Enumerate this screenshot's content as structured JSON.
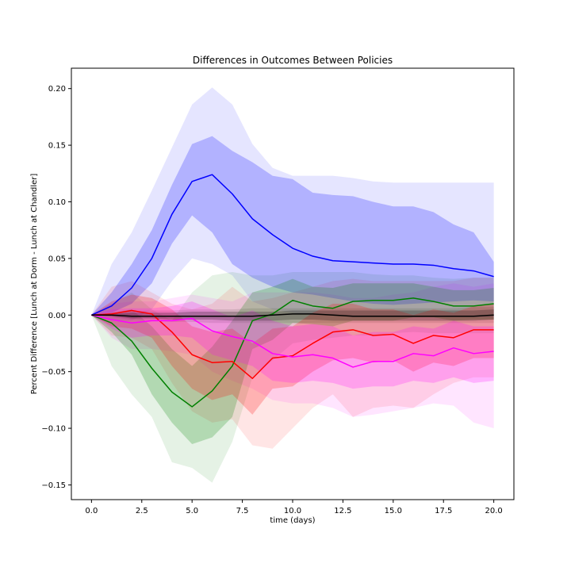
{
  "chart_data": {
    "type": "line",
    "title": "Differences in Outcomes Between Policies",
    "xlabel": "time (days)",
    "ylabel": "Percent Difference [Lunch at Dorm - Lunch at Chandler]",
    "xlim": [
      -1.0,
      21.0
    ],
    "ylim": [
      -0.163,
      0.218
    ],
    "xticks": [
      0.0,
      2.5,
      5.0,
      7.5,
      10.0,
      12.5,
      15.0,
      17.5,
      20.0
    ],
    "xtick_labels": [
      "0.0",
      "2.5",
      "5.0",
      "7.5",
      "10.0",
      "12.5",
      "15.0",
      "17.5",
      "20.0"
    ],
    "yticks": [
      -0.15,
      -0.1,
      -0.05,
      0.0,
      0.05,
      0.1,
      0.15,
      0.2
    ],
    "ytick_labels": [
      "−0.15",
      "−0.10",
      "−0.05",
      "0.00",
      "0.05",
      "0.10",
      "0.15",
      "0.20"
    ],
    "grid": false,
    "x": [
      0,
      1,
      2,
      3,
      4,
      5,
      6,
      7,
      8,
      9,
      10,
      11,
      12,
      13,
      14,
      15,
      16,
      17,
      18,
      19,
      20
    ],
    "series": [
      {
        "color": "#0000ff",
        "values": [
          0,
          0.008,
          0.024,
          0.05,
          0.089,
          0.118,
          0.124,
          0.107,
          0.085,
          0.071,
          0.059,
          0.052,
          0.048,
          0.047,
          0.046,
          0.045,
          0.045,
          0.044,
          0.041,
          0.039,
          0.034
        ],
        "band_inner": {
          "upper": [
            0,
            0.02,
            0.045,
            0.075,
            0.115,
            0.151,
            0.158,
            0.145,
            0.135,
            0.123,
            0.12,
            0.108,
            0.106,
            0.105,
            0.1,
            0.096,
            0.096,
            0.091,
            0.08,
            0.073,
            0.047
          ],
          "lower": [
            0,
            0.002,
            0.01,
            0.028,
            0.063,
            0.088,
            0.073,
            0.045,
            0.033,
            0.025,
            0.02,
            0.018,
            0.015,
            0.012,
            0.01,
            0.009,
            0.01,
            0.011,
            0.012,
            0.013,
            0.012
          ]
        },
        "band_outer": {
          "upper": [
            0,
            0.045,
            0.073,
            0.11,
            0.148,
            0.186,
            0.201,
            0.186,
            0.151,
            0.13,
            0.123,
            0.123,
            0.123,
            0.121,
            0.118,
            0.117,
            0.117,
            0.117,
            0.117,
            0.117,
            0.117
          ],
          "lower": [
            0,
            -0.005,
            -0.005,
            0.005,
            0.03,
            0.05,
            0.045,
            0.035,
            0.012,
            0.005,
            0.002,
            0.0,
            0.0,
            -0.002,
            -0.002,
            -0.002,
            -0.002,
            -0.002,
            -0.002,
            -0.002,
            -0.002
          ]
        }
      },
      {
        "color": "#008000",
        "values": [
          0,
          -0.007,
          -0.023,
          -0.047,
          -0.068,
          -0.081,
          -0.067,
          -0.045,
          -0.005,
          0.001,
          0.013,
          0.008,
          0.006,
          0.012,
          0.013,
          0.013,
          0.015,
          0.012,
          0.008,
          0.008,
          0.01
        ],
        "band_inner": {
          "upper": [
            0,
            0.002,
            0.005,
            -0.01,
            -0.03,
            -0.045,
            -0.028,
            -0.005,
            0.02,
            0.025,
            0.032,
            0.025,
            0.024,
            0.028,
            0.028,
            0.028,
            0.028,
            0.025,
            0.022,
            0.022,
            0.024
          ],
          "lower": [
            0,
            -0.015,
            -0.035,
            -0.07,
            -0.095,
            -0.114,
            -0.108,
            -0.09,
            -0.03,
            -0.022,
            -0.007,
            -0.008,
            -0.01,
            -0.005,
            -0.005,
            -0.005,
            -0.002,
            -0.002,
            -0.005,
            -0.004,
            -0.004
          ]
        },
        "band_outer": {
          "upper": [
            0,
            0.01,
            0.02,
            0.005,
            -0.005,
            0.02,
            0.035,
            0.038,
            0.035,
            0.035,
            0.038,
            0.038,
            0.038,
            0.038,
            0.036,
            0.035,
            0.035,
            0.033,
            0.032,
            0.033,
            0.033
          ],
          "lower": [
            0,
            -0.045,
            -0.07,
            -0.09,
            -0.13,
            -0.135,
            -0.148,
            -0.112,
            -0.055,
            -0.04,
            -0.025,
            -0.022,
            -0.02,
            -0.018,
            -0.018,
            -0.016,
            -0.015,
            -0.016,
            -0.016,
            -0.016,
            -0.016
          ]
        }
      },
      {
        "color": "#ff0000",
        "values": [
          0,
          0.001,
          0.004,
          0.001,
          -0.015,
          -0.035,
          -0.042,
          -0.041,
          -0.056,
          -0.038,
          -0.036,
          -0.025,
          -0.015,
          -0.013,
          -0.018,
          -0.017,
          -0.025,
          -0.018,
          -0.02,
          -0.013,
          -0.013
        ],
        "band_inner": {
          "upper": [
            0,
            0.012,
            0.018,
            0.015,
            0.005,
            -0.01,
            -0.015,
            -0.012,
            -0.025,
            -0.012,
            -0.01,
            0.002,
            0.01,
            0.01,
            0.005,
            0.005,
            0.0,
            0.005,
            0.002,
            0.008,
            0.01
          ],
          "lower": [
            0,
            -0.01,
            -0.012,
            -0.02,
            -0.045,
            -0.065,
            -0.075,
            -0.07,
            -0.088,
            -0.065,
            -0.063,
            -0.05,
            -0.04,
            -0.038,
            -0.042,
            -0.04,
            -0.05,
            -0.042,
            -0.045,
            -0.038,
            -0.038
          ]
        },
        "band_outer": {
          "upper": [
            0,
            0.025,
            0.03,
            0.02,
            0.01,
            0.005,
            0.01,
            0.025,
            0.012,
            0.015,
            0.02,
            0.025,
            0.03,
            0.032,
            0.03,
            0.03,
            0.03,
            0.03,
            0.03,
            0.033,
            0.033
          ],
          "lower": [
            0,
            -0.018,
            -0.02,
            -0.03,
            -0.06,
            -0.085,
            -0.095,
            -0.092,
            -0.115,
            -0.118,
            -0.1,
            -0.082,
            -0.07,
            -0.09,
            -0.082,
            -0.08,
            -0.082,
            -0.07,
            -0.06,
            -0.055,
            -0.055
          ]
        }
      },
      {
        "color": "#ff00ff",
        "values": [
          0,
          -0.004,
          -0.007,
          -0.005,
          -0.005,
          -0.003,
          -0.014,
          -0.019,
          -0.023,
          -0.034,
          -0.037,
          -0.035,
          -0.038,
          -0.046,
          -0.041,
          -0.041,
          -0.034,
          -0.036,
          -0.029,
          -0.034,
          -0.032
        ],
        "band_inner": {
          "upper": [
            0,
            0.005,
            0.006,
            0.006,
            0.008,
            0.012,
            0.005,
            -0.002,
            0.004,
            -0.005,
            -0.01,
            -0.008,
            -0.01,
            -0.018,
            -0.015,
            -0.015,
            -0.01,
            -0.012,
            -0.005,
            -0.01,
            -0.01
          ],
          "lower": [
            0,
            -0.012,
            -0.02,
            -0.018,
            -0.018,
            -0.02,
            -0.035,
            -0.04,
            -0.045,
            -0.058,
            -0.06,
            -0.058,
            -0.06,
            -0.065,
            -0.063,
            -0.063,
            -0.058,
            -0.06,
            -0.055,
            -0.06,
            -0.058
          ]
        },
        "band_outer": {
          "upper": [
            0,
            0.01,
            0.012,
            0.012,
            0.015,
            0.018,
            0.015,
            0.012,
            0.02,
            0.02,
            0.02,
            0.02,
            0.018,
            0.015,
            0.015,
            0.018,
            0.02,
            0.025,
            0.028,
            0.025,
            0.028
          ],
          "lower": [
            0,
            -0.02,
            -0.03,
            -0.03,
            -0.032,
            -0.035,
            -0.05,
            -0.058,
            -0.065,
            -0.075,
            -0.078,
            -0.078,
            -0.082,
            -0.09,
            -0.088,
            -0.085,
            -0.082,
            -0.078,
            -0.08,
            -0.095,
            -0.1
          ]
        }
      },
      {
        "color": "#000000",
        "values": [
          0,
          0.0,
          -0.001,
          -0.001,
          -0.001,
          -0.001,
          -0.001,
          -0.001,
          -0.001,
          0.0,
          0.001,
          0.001,
          0.0,
          -0.001,
          -0.001,
          -0.001,
          -0.001,
          -0.001,
          -0.001,
          -0.001,
          0.0
        ],
        "band_inner": {
          "upper": [
            0,
            0.001,
            0.002,
            0.002,
            0.002,
            0.003,
            0.003,
            0.003,
            0.003,
            0.003,
            0.004,
            0.004,
            0.004,
            0.004,
            0.004,
            0.004,
            0.004,
            0.004,
            0.004,
            0.004,
            0.005
          ],
          "lower": [
            0,
            -0.001,
            -0.003,
            -0.003,
            -0.004,
            -0.004,
            -0.004,
            -0.005,
            -0.005,
            -0.005,
            -0.004,
            -0.004,
            -0.005,
            -0.005,
            -0.005,
            -0.005,
            -0.005,
            -0.005,
            -0.005,
            -0.005,
            -0.004
          ]
        },
        "band_outer": {
          "upper": [
            0,
            0.002,
            0.003,
            0.004,
            0.004,
            0.005,
            0.005,
            0.005,
            0.006,
            0.006,
            0.006,
            0.006,
            0.006,
            0.006,
            0.006,
            0.006,
            0.006,
            0.006,
            0.006,
            0.007,
            0.007
          ],
          "lower": [
            0,
            -0.002,
            -0.004,
            -0.005,
            -0.006,
            -0.006,
            -0.007,
            -0.007,
            -0.007,
            -0.007,
            -0.007,
            -0.007,
            -0.007,
            -0.007,
            -0.007,
            -0.007,
            -0.007,
            -0.007,
            -0.007,
            -0.007,
            -0.007
          ]
        }
      }
    ]
  }
}
